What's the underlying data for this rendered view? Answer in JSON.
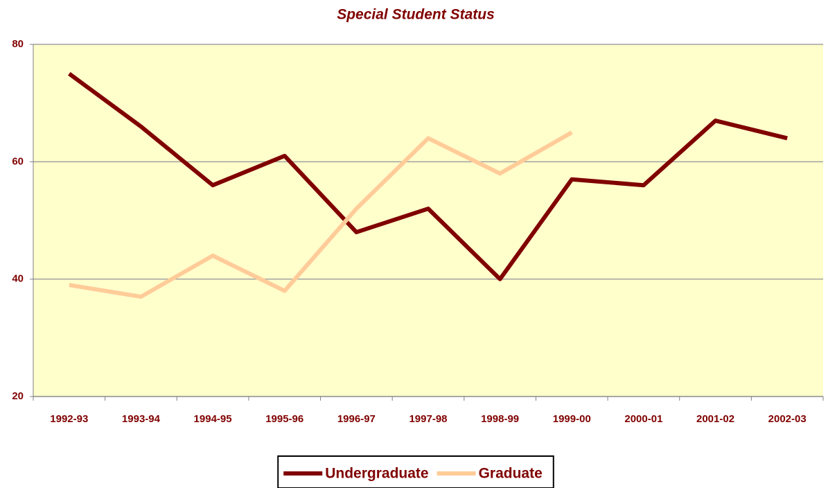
{
  "chart_data": {
    "type": "line",
    "title": "Special Student Status",
    "categories": [
      "1992-93",
      "1993-94",
      "1994-95",
      "1995-96",
      "1996-97",
      "1997-98",
      "1998-99",
      "1999-00",
      "2000-01",
      "2001-02",
      "2002-03"
    ],
    "series": [
      {
        "name": "Undergraduate",
        "color": "#800000",
        "values": [
          75,
          66,
          56,
          61,
          48,
          52,
          40,
          57,
          56,
          67,
          64
        ]
      },
      {
        "name": "Graduate",
        "color": "#ffcc99",
        "values": [
          39,
          37,
          44,
          38,
          52,
          64,
          58,
          65,
          null,
          null,
          null
        ]
      }
    ],
    "ylim": [
      20,
      80
    ],
    "yticks": [
      20,
      40,
      60,
      80
    ],
    "grid": true,
    "legend": "bottom"
  }
}
